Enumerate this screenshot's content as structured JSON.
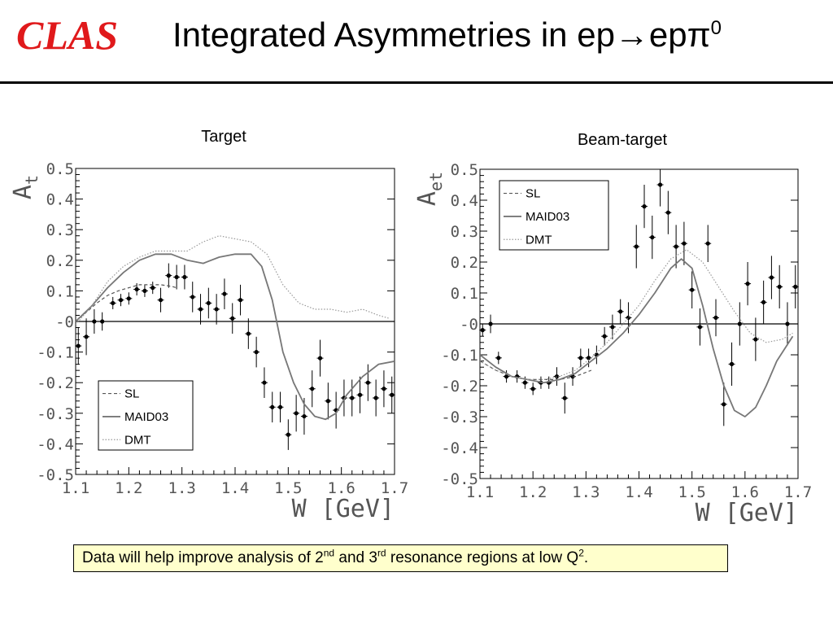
{
  "header": {
    "logo": "CLAS",
    "title": "Integrated Asymmetries in ep→epπ",
    "title_sup": "0"
  },
  "caption": {
    "p1": "Data will help improve analysis of 2",
    "s1": "nd",
    "p2": " and 3",
    "s2": "rd",
    "p3": " resonance regions at low Q",
    "s3": "2",
    "p4": "."
  },
  "chart_data": [
    {
      "type": "scatter",
      "title": "Target",
      "ylabel": "A",
      "ylabel_sub": "t",
      "xlabel": "W  [GeV]",
      "xlim": [
        1.1,
        1.7
      ],
      "ylim": [
        -0.5,
        0.5
      ],
      "x_ticks": [
        "1.1",
        "1.2",
        "1.3",
        "1.4",
        "1.5",
        "1.6",
        "1.7"
      ],
      "y_ticks": [
        "-0.5",
        "-0.4",
        "-0.3",
        "-0.2",
        "-0.1",
        "-0",
        "0.1",
        "0.2",
        "0.3",
        "0.4",
        "0.5"
      ],
      "legend": [
        "SL",
        "MAID03",
        "DMT"
      ],
      "legend_position": "bottom-left",
      "series": [
        {
          "name": "data",
          "style": "points",
          "x": [
            1.105,
            1.12,
            1.135,
            1.15,
            1.17,
            1.185,
            1.2,
            1.215,
            1.23,
            1.245,
            1.26,
            1.275,
            1.29,
            1.305,
            1.32,
            1.335,
            1.35,
            1.365,
            1.38,
            1.395,
            1.41,
            1.425,
            1.44,
            1.455,
            1.47,
            1.485,
            1.5,
            1.515,
            1.53,
            1.545,
            1.56,
            1.575,
            1.59,
            1.605,
            1.62,
            1.635,
            1.65,
            1.665,
            1.68,
            1.695
          ],
          "y": [
            -0.08,
            -0.05,
            0.0,
            0.0,
            0.06,
            0.07,
            0.075,
            0.105,
            0.1,
            0.11,
            0.07,
            0.15,
            0.145,
            0.145,
            0.08,
            0.04,
            0.06,
            0.04,
            0.09,
            0.01,
            0.07,
            -0.04,
            -0.1,
            -0.2,
            -0.28,
            -0.28,
            -0.37,
            -0.3,
            -0.31,
            -0.22,
            -0.12,
            -0.26,
            -0.29,
            -0.25,
            -0.25,
            -0.24,
            -0.2,
            -0.25,
            -0.22,
            -0.24
          ],
          "err": [
            0.06,
            0.06,
            0.04,
            0.03,
            0.02,
            0.02,
            0.02,
            0.02,
            0.02,
            0.02,
            0.04,
            0.04,
            0.04,
            0.04,
            0.05,
            0.05,
            0.05,
            0.05,
            0.05,
            0.05,
            0.05,
            0.05,
            0.05,
            0.05,
            0.05,
            0.05,
            0.05,
            0.06,
            0.06,
            0.06,
            0.06,
            0.06,
            0.06,
            0.06,
            0.06,
            0.06,
            0.06,
            0.06,
            0.06,
            0.06
          ]
        },
        {
          "name": "SL",
          "style": "dashed",
          "x": [
            1.1,
            1.12,
            1.14,
            1.16,
            1.18,
            1.2,
            1.22,
            1.24,
            1.26,
            1.28,
            1.29
          ],
          "y": [
            0.0,
            0.03,
            0.06,
            0.085,
            0.1,
            0.11,
            0.12,
            0.12,
            0.12,
            0.115,
            0.11
          ]
        },
        {
          "name": "MAID03",
          "style": "solid",
          "x": [
            1.1,
            1.13,
            1.16,
            1.19,
            1.22,
            1.25,
            1.28,
            1.31,
            1.34,
            1.37,
            1.4,
            1.43,
            1.45,
            1.47,
            1.49,
            1.51,
            1.53,
            1.55,
            1.57,
            1.59,
            1.61,
            1.64,
            1.67,
            1.7
          ],
          "y": [
            0.0,
            0.05,
            0.11,
            0.16,
            0.2,
            0.22,
            0.22,
            0.2,
            0.19,
            0.21,
            0.22,
            0.22,
            0.18,
            0.07,
            -0.1,
            -0.2,
            -0.27,
            -0.31,
            -0.32,
            -0.3,
            -0.24,
            -0.18,
            -0.14,
            -0.13
          ]
        },
        {
          "name": "DMT",
          "style": "dotted",
          "x": [
            1.1,
            1.13,
            1.16,
            1.19,
            1.22,
            1.25,
            1.28,
            1.31,
            1.34,
            1.37,
            1.4,
            1.43,
            1.46,
            1.49,
            1.52,
            1.55,
            1.58,
            1.61,
            1.64,
            1.67,
            1.69
          ],
          "y": [
            -0.01,
            0.05,
            0.13,
            0.18,
            0.21,
            0.23,
            0.23,
            0.23,
            0.26,
            0.28,
            0.27,
            0.26,
            0.22,
            0.12,
            0.06,
            0.04,
            0.04,
            0.03,
            0.04,
            0.02,
            0.01
          ]
        }
      ]
    },
    {
      "type": "scatter",
      "title": "Beam-target",
      "ylabel": "A",
      "ylabel_sub": "et",
      "xlabel": "W  [GeV]",
      "xlim": [
        1.1,
        1.7
      ],
      "ylim": [
        -0.5,
        0.5
      ],
      "x_ticks": [
        "1.1",
        "1.2",
        "1.3",
        "1.4",
        "1.5",
        "1.6",
        "1.7"
      ],
      "y_ticks": [
        "-0.5",
        "-0.4",
        "-0.3",
        "-0.2",
        "-0.1",
        "-0",
        "0.1",
        "0.2",
        "0.3",
        "0.4",
        "0.5"
      ],
      "legend": [
        "SL",
        "MAID03",
        "DMT"
      ],
      "legend_position": "top-left",
      "series": [
        {
          "name": "data",
          "style": "points",
          "x": [
            1.105,
            1.12,
            1.135,
            1.15,
            1.17,
            1.185,
            1.2,
            1.215,
            1.23,
            1.245,
            1.26,
            1.275,
            1.29,
            1.305,
            1.32,
            1.335,
            1.35,
            1.365,
            1.38,
            1.395,
            1.41,
            1.425,
            1.44,
            1.455,
            1.47,
            1.485,
            1.5,
            1.515,
            1.53,
            1.545,
            1.56,
            1.575,
            1.59,
            1.605,
            1.62,
            1.635,
            1.65,
            1.665,
            1.68,
            1.695
          ],
          "y": [
            -0.02,
            0.0,
            -0.11,
            -0.17,
            -0.17,
            -0.19,
            -0.21,
            -0.19,
            -0.19,
            -0.17,
            -0.24,
            -0.17,
            -0.11,
            -0.11,
            -0.1,
            -0.04,
            -0.01,
            0.04,
            0.02,
            0.25,
            0.38,
            0.28,
            0.45,
            0.36,
            0.25,
            0.26,
            0.11,
            -0.01,
            0.26,
            0.02,
            -0.26,
            -0.13,
            0.0,
            0.13,
            -0.05,
            0.07,
            0.15,
            0.12,
            0.0,
            0.12
          ],
          "err": [
            0.02,
            0.03,
            0.02,
            0.02,
            0.02,
            0.02,
            0.02,
            0.02,
            0.02,
            0.03,
            0.05,
            0.03,
            0.03,
            0.03,
            0.03,
            0.03,
            0.04,
            0.04,
            0.05,
            0.07,
            0.07,
            0.07,
            0.07,
            0.07,
            0.07,
            0.07,
            0.06,
            0.06,
            0.06,
            0.06,
            0.07,
            0.07,
            0.07,
            0.07,
            0.07,
            0.07,
            0.07,
            0.07,
            0.07,
            0.07
          ]
        },
        {
          "name": "SL",
          "style": "dashed",
          "x": [
            1.1,
            1.13,
            1.16,
            1.19,
            1.22,
            1.25,
            1.28,
            1.31
          ],
          "y": [
            -0.12,
            -0.15,
            -0.17,
            -0.18,
            -0.18,
            -0.18,
            -0.17,
            -0.15
          ]
        },
        {
          "name": "MAID03",
          "style": "solid",
          "x": [
            1.1,
            1.13,
            1.16,
            1.19,
            1.22,
            1.25,
            1.28,
            1.31,
            1.34,
            1.37,
            1.4,
            1.43,
            1.46,
            1.48,
            1.5,
            1.52,
            1.54,
            1.56,
            1.58,
            1.6,
            1.62,
            1.64,
            1.66,
            1.69
          ],
          "y": [
            -0.1,
            -0.14,
            -0.17,
            -0.18,
            -0.19,
            -0.18,
            -0.16,
            -0.12,
            -0.08,
            -0.03,
            0.03,
            0.1,
            0.18,
            0.21,
            0.18,
            0.06,
            -0.08,
            -0.2,
            -0.28,
            -0.3,
            -0.27,
            -0.2,
            -0.12,
            -0.04
          ]
        },
        {
          "name": "DMT",
          "style": "dotted",
          "x": [
            1.1,
            1.13,
            1.16,
            1.19,
            1.22,
            1.25,
            1.28,
            1.31,
            1.34,
            1.37,
            1.4,
            1.43,
            1.46,
            1.49,
            1.52,
            1.55,
            1.58,
            1.61,
            1.64,
            1.67,
            1.69
          ],
          "y": [
            -0.12,
            -0.15,
            -0.17,
            -0.18,
            -0.18,
            -0.17,
            -0.15,
            -0.11,
            -0.06,
            0.0,
            0.06,
            0.14,
            0.21,
            0.24,
            0.2,
            0.12,
            0.04,
            -0.03,
            -0.06,
            -0.05,
            -0.03
          ]
        }
      ]
    }
  ]
}
